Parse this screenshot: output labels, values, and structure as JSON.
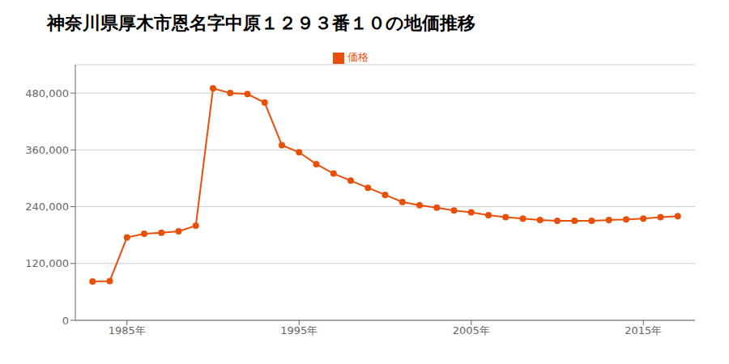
{
  "chart_data": {
    "type": "line",
    "title": "神奈川県厚木市恩名字中原１２９３番１０の地価推移",
    "x": [
      1983,
      1984,
      1985,
      1986,
      1987,
      1988,
      1989,
      1990,
      1991,
      1992,
      1993,
      1994,
      1995,
      1996,
      1997,
      1998,
      1999,
      2000,
      2001,
      2002,
      2003,
      2004,
      2005,
      2006,
      2007,
      2008,
      2009,
      2010,
      2011,
      2012,
      2013,
      2014,
      2015,
      2016,
      2017
    ],
    "series": [
      {
        "name": "価格",
        "color": "#E8500A",
        "marker": "circle",
        "values": [
          82000,
          83000,
          175000,
          183000,
          185000,
          188000,
          200000,
          490000,
          480000,
          478000,
          460000,
          370000,
          355000,
          330000,
          310000,
          295000,
          280000,
          265000,
          250000,
          243000,
          238000,
          232000,
          228000,
          222000,
          218000,
          215000,
          212000,
          210000,
          210000,
          210000,
          212000,
          213000,
          215000,
          218000,
          220000
        ]
      }
    ],
    "xlim": [
      1982,
      2018
    ],
    "xticks": [
      {
        "value": 1985,
        "label": "1985年"
      },
      {
        "value": 1995,
        "label": "1995年"
      },
      {
        "value": 2005,
        "label": "2005年"
      },
      {
        "value": 2015,
        "label": "2015年"
      }
    ],
    "ylim": [
      0,
      540000
    ],
    "yticks": [
      0,
      {
        "value": 120000,
        "label": "120,000"
      },
      {
        "value": 240000,
        "label": "240,000"
      },
      {
        "value": 360000,
        "label": "360,000"
      },
      {
        "value": 480000,
        "label": "480,000"
      }
    ],
    "grid": true,
    "legend": "top"
  }
}
